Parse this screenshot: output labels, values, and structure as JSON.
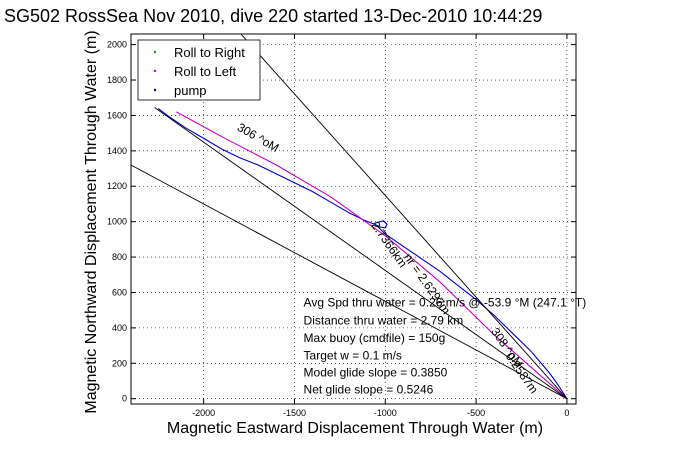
{
  "chart_data": {
    "type": "line",
    "title": "SG502 RossSea Nov 2010, dive 220 started 13-Dec-2010 10:44:29",
    "xlabel": "Magnetic Eastward Displacement Through Water (m)",
    "ylabel": "Magnetic Northward Displacement Through Water (m)",
    "xlim": [
      -2400,
      50
    ],
    "ylim": [
      -30,
      2060
    ],
    "xticks": [
      -2000,
      -1500,
      -1000,
      -500,
      0
    ],
    "yticks": [
      0,
      200,
      400,
      600,
      800,
      1000,
      1200,
      1400,
      1600,
      1800,
      2000
    ],
    "grid": true,
    "legend": {
      "position": "top-left",
      "entries": [
        {
          "label": "Roll to Right",
          "color": "#00aa00"
        },
        {
          "label": "Roll to Left",
          "color": "#cc00cc"
        },
        {
          "label": "pump",
          "color": "#000088"
        }
      ]
    },
    "series": [
      {
        "color": "#0000cc",
        "x": [
          -2250,
          -2200,
          -2100,
          -2000,
          -1900,
          -1800,
          -1700,
          -1600,
          -1500,
          -1400,
          -1300,
          -1200,
          -1120,
          -1060,
          -1030,
          -1000,
          -990,
          -1010,
          -1060,
          -1000,
          -900,
          -800,
          -700,
          -600,
          -500,
          -400,
          -300,
          -200,
          -100,
          -50,
          0
        ],
        "y": [
          1640,
          1600,
          1530,
          1470,
          1410,
          1360,
          1320,
          1270,
          1220,
          1170,
          1110,
          1050,
          1010,
          985,
          970,
          965,
          985,
          1005,
          990,
          930,
          860,
          790,
          720,
          640,
          560,
          470,
          370,
          270,
          150,
          80,
          0
        ]
      },
      {
        "color": "#cc00cc",
        "x": [
          -2150,
          -1900,
          -1600,
          -1300,
          -1000,
          -700,
          -400,
          -100,
          0
        ],
        "y": [
          1620,
          1480,
          1320,
          1140,
          920,
          660,
          360,
          90,
          0
        ]
      },
      {
        "color": "#000000",
        "x": [
          -1795,
          0
        ],
        "y": [
          2060,
          0
        ]
      },
      {
        "color": "#000000",
        "x": [
          -2400,
          0
        ],
        "y": [
          1320,
          0
        ]
      },
      {
        "color": "#000000",
        "x": [
          -2270,
          0
        ],
        "y": [
          1645,
          0
        ]
      }
    ],
    "annotations": [
      {
        "text": "306 ^oM",
        "x": -1820,
        "y": 1520,
        "angle": 30
      },
      {
        "text": "2.7366km",
        "x": -1080,
        "y": 980,
        "angle": 55
      },
      {
        "text": "nr = 2.6297m",
        "x": -900,
        "y": 800,
        "angle": 55
      },
      {
        "text": "308 ^oM",
        "x": -420,
        "y": 380,
        "angle": 55
      },
      {
        "text": "0.2587m",
        "x": -340,
        "y": 240,
        "angle": 55
      },
      {
        "text": "Avg Spd thru water = 0.26 m/s @ -53.9    °M (247.1 °T)",
        "x": -1450,
        "y": 520,
        "angle": 0
      },
      {
        "text": "Distance thru water = 2.79 km",
        "x": -1450,
        "y": 420,
        "angle": 0
      },
      {
        "text": "Max buoy (cmdfile) = 150g",
        "x": -1450,
        "y": 320,
        "angle": 0
      },
      {
        "text": "Target w = 0.1 m/s",
        "x": -1450,
        "y": 220,
        "angle": 0
      },
      {
        "text": "Model glide slope = 0.3850",
        "x": -1450,
        "y": 125,
        "angle": 0
      },
      {
        "text": "Net glide slope = 0.5246",
        "x": -1450,
        "y": 30,
        "angle": 0
      }
    ]
  }
}
